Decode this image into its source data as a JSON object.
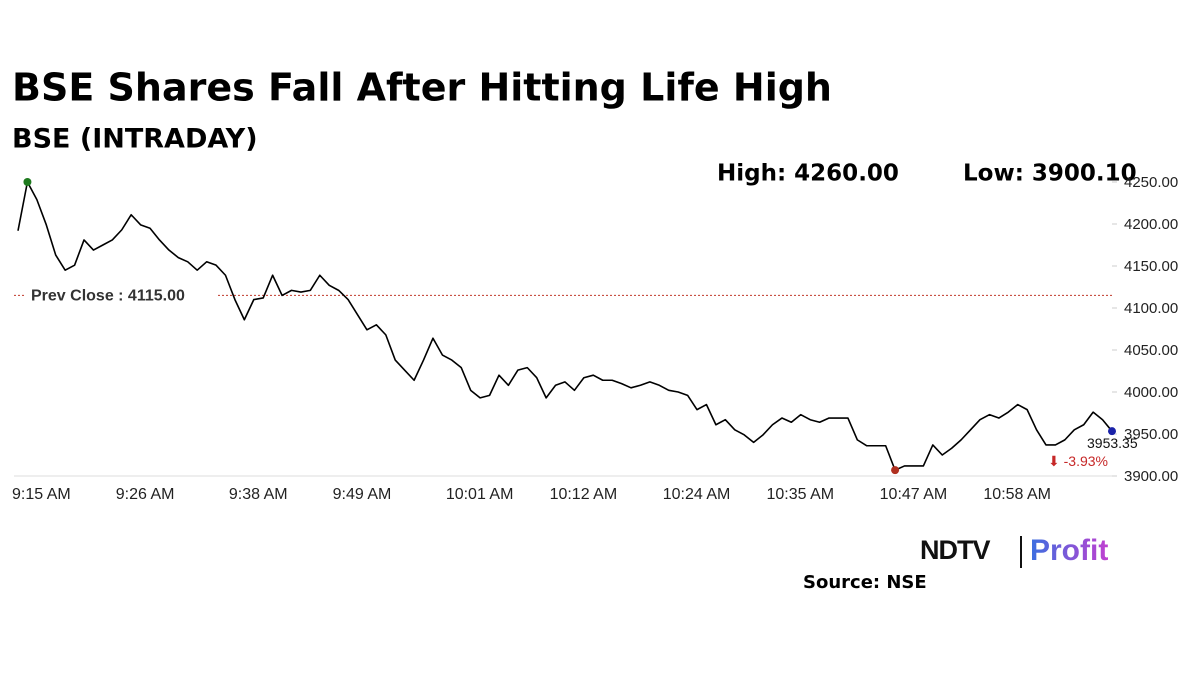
{
  "chart_data": {
    "type": "line",
    "title": "BSE Shares Fall After Hitting Life High",
    "subtitle": "BSE (INTRADAY)",
    "high_label": "High: 4260.00",
    "low_label": "Low: 3900.10",
    "change_label": "⬇ -3.93%",
    "source": "Source: NSE",
    "logo": {
      "left": "NDTV",
      "right": "Profit"
    },
    "categories": [
      "9:15 AM",
      null,
      null,
      null,
      null,
      null,
      null,
      null,
      null,
      null,
      null,
      "9:26 AM",
      null,
      null,
      null,
      null,
      null,
      null,
      null,
      null,
      null,
      null,
      null,
      "9:38 AM",
      null,
      null,
      null,
      null,
      null,
      null,
      null,
      null,
      null,
      null,
      "9:49 AM",
      null,
      null,
      null,
      null,
      null,
      null,
      null,
      null,
      null,
      null,
      null,
      "10:01 AM",
      null,
      null,
      null,
      null,
      null,
      null,
      null,
      null,
      null,
      null,
      "10:12 AM",
      null,
      null,
      null,
      null,
      null,
      null,
      null,
      null,
      null,
      null,
      null,
      "10:24 AM",
      null,
      null,
      null,
      null,
      null,
      null,
      null,
      null,
      null,
      null,
      "10:35 AM",
      null,
      null,
      null,
      null,
      null,
      null,
      null,
      null,
      null,
      null,
      null,
      "10:47 AM",
      null,
      null,
      null,
      null,
      null,
      null,
      null,
      null,
      null,
      null,
      "10:58 AM",
      null,
      null,
      null,
      null,
      null,
      null,
      null,
      null,
      null,
      null,
      null,
      null,
      null
    ],
    "series": [
      {
        "name": "BSE",
        "color": "#000000",
        "values": [
          4192,
          4250,
          4229,
          4199,
          4163,
          4145,
          4151,
          4181,
          4169,
          4175,
          4181,
          4193,
          4211,
          4199,
          4195,
          4181,
          4169,
          4160,
          4155,
          4145,
          4155,
          4151,
          4139,
          4110,
          4086,
          4110,
          4112,
          4139,
          4115,
          4121,
          4119,
          4121,
          4139,
          4127,
          4121,
          4110,
          4092,
          4074,
          4080,
          4068,
          4038,
          4026,
          4014,
          4038,
          4064,
          4044,
          4038,
          4029,
          4002,
          3993,
          3996,
          4020,
          4008,
          4026,
          4029,
          4017,
          3993,
          4008,
          4012,
          4002,
          4017,
          4020,
          4014,
          4014,
          4010,
          4005,
          4008,
          4012,
          4008,
          4002,
          4000,
          3996,
          3979,
          3985,
          3961,
          3967,
          3955,
          3949,
          3940,
          3949,
          3961,
          3969,
          3964,
          3973,
          3967,
          3964,
          3969,
          3969,
          3969,
          3943,
          3936,
          3936,
          3936,
          3907,
          3912,
          3912,
          3912,
          3937,
          3925,
          3933,
          3943,
          3955,
          3967,
          3973,
          3969,
          3976,
          3985,
          3979,
          3955,
          3937,
          3937,
          3943,
          3955,
          3961,
          3976,
          3967,
          3953.35
        ]
      }
    ],
    "prev_close": {
      "value": 4115,
      "label": "Prev Close : 4115.00",
      "color": "#c0392b"
    },
    "marker_colors": {
      "high": "#1e7a1e",
      "low": "#b03020",
      "last": "#1a22a8"
    },
    "change_color": "#c62828",
    "ylim": [
      3900,
      4250
    ],
    "yticks": [
      {
        "value": 3900,
        "label": "3900.00"
      },
      {
        "value": 3950,
        "label": "3950.00"
      },
      {
        "value": 4000,
        "label": "4000.00"
      },
      {
        "value": 4050,
        "label": "4050.00"
      },
      {
        "value": 4100,
        "label": "4100.00"
      },
      {
        "value": 4150,
        "label": "4150.00"
      },
      {
        "value": 4200,
        "label": "4200.00"
      },
      {
        "value": 4250,
        "label": "4250.00"
      }
    ],
    "grid": false
  }
}
